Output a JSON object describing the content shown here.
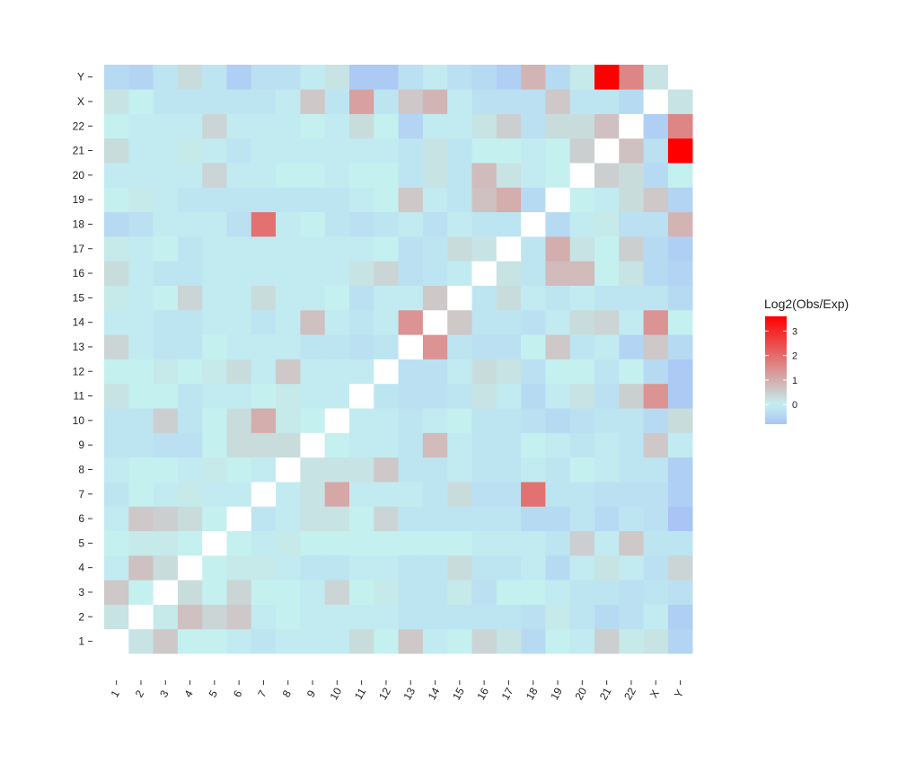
{
  "chart_data": {
    "type": "heatmap",
    "title": "",
    "xlabel": "",
    "ylabel": "",
    "categories": [
      "1",
      "2",
      "3",
      "4",
      "5",
      "6",
      "7",
      "8",
      "9",
      "10",
      "11",
      "12",
      "13",
      "14",
      "15",
      "16",
      "17",
      "18",
      "19",
      "20",
      "21",
      "22",
      "X",
      "Y"
    ],
    "colorbar": {
      "title": "Log2(Obs/Exp)",
      "ticks": [
        0,
        1,
        2,
        3
      ],
      "range": [
        -0.8,
        3.6
      ],
      "colors": {
        "low": "#a9c4f5",
        "mid": "#c4f0f0",
        "high": "#ff0000"
      }
    },
    "rows": [
      {
        "y": "1",
        "values": [
          null,
          0.2,
          0.6,
          0,
          0,
          -0.1,
          -0.2,
          -0.1,
          -0.1,
          -0.1,
          0.3,
          0,
          0.6,
          -0.1,
          0,
          0.4,
          0.2,
          -0.4,
          0,
          -0.1,
          0.5,
          0.1,
          0.2,
          -0.5
        ]
      },
      {
        "y": "2",
        "values": [
          0.2,
          null,
          0.1,
          0.7,
          0.4,
          0.6,
          -0.1,
          0,
          -0.1,
          -0.1,
          -0.1,
          -0.1,
          -0.2,
          -0.2,
          -0.2,
          -0.2,
          -0.2,
          -0.3,
          0.1,
          -0.2,
          -0.4,
          -0.3,
          -0.1,
          -0.6
        ]
      },
      {
        "y": "3",
        "values": [
          0.6,
          0,
          null,
          0.3,
          0,
          0.4,
          0,
          0,
          -0.1,
          0.4,
          0,
          0.1,
          -0.2,
          -0.2,
          0.1,
          -0.3,
          0,
          0,
          -0.1,
          -0.2,
          -0.2,
          -0.3,
          -0.2,
          -0.3
        ]
      },
      {
        "y": "4",
        "values": [
          -0.1,
          0.7,
          0.3,
          null,
          0,
          0.1,
          0.1,
          -0.1,
          -0.2,
          -0.2,
          -0.1,
          -0.1,
          -0.2,
          -0.2,
          0.3,
          -0.2,
          -0.2,
          -0.1,
          -0.4,
          -0.1,
          0.2,
          -0.1,
          -0.3,
          0.4
        ]
      },
      {
        "y": "5",
        "values": [
          0,
          0.1,
          0.1,
          0,
          null,
          0,
          -0.1,
          0.1,
          0,
          0,
          0,
          0,
          0,
          0,
          0,
          -0.1,
          -0.1,
          -0.1,
          -0.2,
          0.5,
          -0.1,
          0.6,
          -0.2,
          -0.2
        ]
      },
      {
        "y": "6",
        "values": [
          -0.1,
          0.6,
          0.5,
          0.3,
          0,
          null,
          -0.2,
          -0.1,
          0.2,
          0.2,
          0,
          0.4,
          -0.2,
          -0.2,
          -0.2,
          -0.2,
          -0.2,
          -0.4,
          -0.4,
          -0.2,
          -0.4,
          -0.2,
          -0.3,
          -0.8
        ]
      },
      {
        "y": "7",
        "values": [
          -0.2,
          0,
          -0.1,
          0.1,
          -0.1,
          -0.1,
          null,
          -0.1,
          0.2,
          1.1,
          -0.1,
          -0.1,
          -0.1,
          -0.2,
          0.3,
          -0.3,
          -0.3,
          1.9,
          -0.2,
          -0.2,
          -0.3,
          -0.3,
          -0.3,
          -0.6
        ]
      },
      {
        "y": "8",
        "values": [
          -0.1,
          0,
          0,
          -0.1,
          0.1,
          0,
          -0.1,
          null,
          0.2,
          0.2,
          0.2,
          0.6,
          -0.2,
          -0.2,
          -0.1,
          -0.2,
          -0.2,
          -0.1,
          -0.2,
          0,
          -0.1,
          -0.2,
          -0.2,
          -0.6
        ]
      },
      {
        "y": "9",
        "values": [
          -0.2,
          -0.2,
          -0.3,
          -0.3,
          0,
          0.3,
          0.3,
          0.3,
          null,
          0,
          -0.1,
          -0.1,
          -0.2,
          0.8,
          -0.1,
          -0.2,
          -0.2,
          0,
          -0.1,
          -0.2,
          -0.1,
          -0.2,
          0.6,
          -0.1
        ]
      },
      {
        "y": "10",
        "values": [
          -0.2,
          -0.2,
          0.5,
          -0.2,
          0,
          0.3,
          1.0,
          0.1,
          0,
          null,
          -0.1,
          -0.1,
          -0.2,
          -0.1,
          0,
          -0.2,
          -0.2,
          -0.3,
          -0.4,
          -0.3,
          -0.2,
          -0.2,
          -0.4,
          0.3
        ]
      },
      {
        "y": "11",
        "values": [
          0.2,
          0,
          0,
          -0.2,
          -0.1,
          -0.1,
          0,
          0.1,
          -0.1,
          -0.1,
          null,
          -0.2,
          -0.3,
          -0.3,
          -0.2,
          0.2,
          -0.1,
          -0.4,
          -0.1,
          0.2,
          -0.3,
          0.5,
          1.4,
          -0.7
        ]
      },
      {
        "y": "12",
        "values": [
          0,
          0,
          0.1,
          0,
          0.1,
          0.3,
          -0.1,
          0.6,
          -0.1,
          -0.1,
          -0.1,
          null,
          -0.3,
          -0.3,
          -0.1,
          0.3,
          0.2,
          -0.3,
          0,
          0,
          -0.2,
          0,
          -0.4,
          -0.7
        ]
      },
      {
        "y": "13",
        "values": [
          0.4,
          -0.1,
          -0.2,
          -0.2,
          0,
          -0.1,
          -0.1,
          -0.1,
          -0.2,
          -0.2,
          -0.3,
          -0.2,
          null,
          1.4,
          -0.2,
          -0.3,
          -0.3,
          0,
          0.6,
          -0.2,
          -0.1,
          -0.5,
          0.6,
          -0.4
        ]
      },
      {
        "y": "14",
        "values": [
          -0.1,
          -0.1,
          -0.2,
          -0.2,
          -0.1,
          -0.1,
          -0.2,
          -0.1,
          0.7,
          -0.1,
          -0.2,
          -0.1,
          1.4,
          null,
          0.6,
          -0.2,
          -0.2,
          -0.3,
          -0.1,
          0.3,
          0.4,
          -0.1,
          1.4,
          0
        ]
      },
      {
        "y": "15",
        "values": [
          0.1,
          -0.1,
          0,
          0.4,
          -0.1,
          -0.1,
          0.3,
          -0.1,
          -0.1,
          0,
          -0.3,
          -0.1,
          -0.1,
          0.6,
          null,
          -0.2,
          0.3,
          -0.1,
          -0.2,
          -0.1,
          -0.2,
          -0.2,
          -0.2,
          -0.4
        ]
      },
      {
        "y": "16",
        "values": [
          0.3,
          -0.1,
          -0.2,
          -0.2,
          -0.1,
          -0.1,
          -0.1,
          -0.1,
          -0.1,
          -0.1,
          0.2,
          0.4,
          -0.3,
          -0.2,
          -0.1,
          null,
          0.2,
          -0.2,
          0.8,
          0.8,
          0,
          0.2,
          -0.4,
          -0.5
        ]
      },
      {
        "y": "17",
        "values": [
          0.1,
          -0.1,
          0,
          -0.2,
          -0.1,
          -0.1,
          -0.1,
          -0.1,
          -0.1,
          -0.1,
          -0.1,
          0,
          -0.3,
          -0.2,
          0.3,
          0.2,
          null,
          -0.2,
          1.0,
          0.2,
          0,
          0.5,
          -0.4,
          -0.6
        ]
      },
      {
        "y": "18",
        "values": [
          -0.4,
          -0.3,
          -0.1,
          -0.1,
          -0.1,
          -0.3,
          1.9,
          -0.1,
          0,
          -0.2,
          -0.3,
          -0.2,
          -0.1,
          -0.3,
          -0.1,
          -0.2,
          -0.2,
          null,
          -0.4,
          -0.1,
          0.1,
          -0.3,
          -0.3,
          0.9
        ]
      },
      {
        "y": "19",
        "values": [
          0,
          0.1,
          -0.1,
          -0.2,
          -0.2,
          -0.2,
          -0.2,
          -0.2,
          -0.2,
          -0.2,
          -0.1,
          0,
          0.6,
          -0.1,
          -0.2,
          0.7,
          1.0,
          -0.4,
          null,
          0,
          -0.1,
          0.3,
          0.6,
          -0.5
        ]
      },
      {
        "y": "20",
        "values": [
          -0.1,
          -0.1,
          -0.1,
          -0.1,
          0.4,
          -0.1,
          -0.1,
          0,
          0,
          -0.1,
          0,
          0,
          -0.2,
          0.2,
          -0.2,
          0.8,
          0.2,
          -0.1,
          0,
          null,
          0.5,
          0.3,
          -0.4,
          0
        ]
      },
      {
        "y": "21",
        "values": [
          0.3,
          -0.1,
          -0.1,
          0.1,
          -0.1,
          -0.2,
          -0.1,
          -0.1,
          -0.1,
          -0.1,
          -0.1,
          -0.1,
          -0.2,
          0.2,
          -0.2,
          0,
          0,
          -0.1,
          0,
          0.5,
          null,
          0.7,
          -0.3,
          3.6
        ]
      },
      {
        "y": "22",
        "values": [
          0,
          -0.1,
          -0.1,
          -0.1,
          0.4,
          -0.1,
          -0.1,
          -0.1,
          0,
          -0.1,
          0.3,
          0,
          -0.5,
          -0.1,
          -0.1,
          0.2,
          0.5,
          -0.3,
          0.3,
          0.3,
          0.7,
          null,
          -0.6,
          1.6
        ]
      },
      {
        "y": "X",
        "values": [
          0.2,
          0,
          -0.2,
          -0.2,
          -0.2,
          -0.2,
          -0.2,
          -0.1,
          0.6,
          -0.2,
          1.2,
          -0.2,
          0.6,
          0.9,
          -0.1,
          -0.3,
          -0.3,
          -0.3,
          0.6,
          -0.2,
          -0.2,
          -0.4,
          null,
          0.2
        ]
      },
      {
        "y": "Y",
        "values": [
          -0.4,
          -0.5,
          -0.2,
          0.3,
          -0.2,
          -0.6,
          -0.3,
          -0.3,
          -0.1,
          0.2,
          -0.7,
          -0.7,
          -0.3,
          -0.1,
          -0.3,
          -0.4,
          -0.6,
          0.9,
          -0.4,
          0.1,
          3.6,
          1.6,
          0.2,
          null
        ]
      }
    ]
  }
}
